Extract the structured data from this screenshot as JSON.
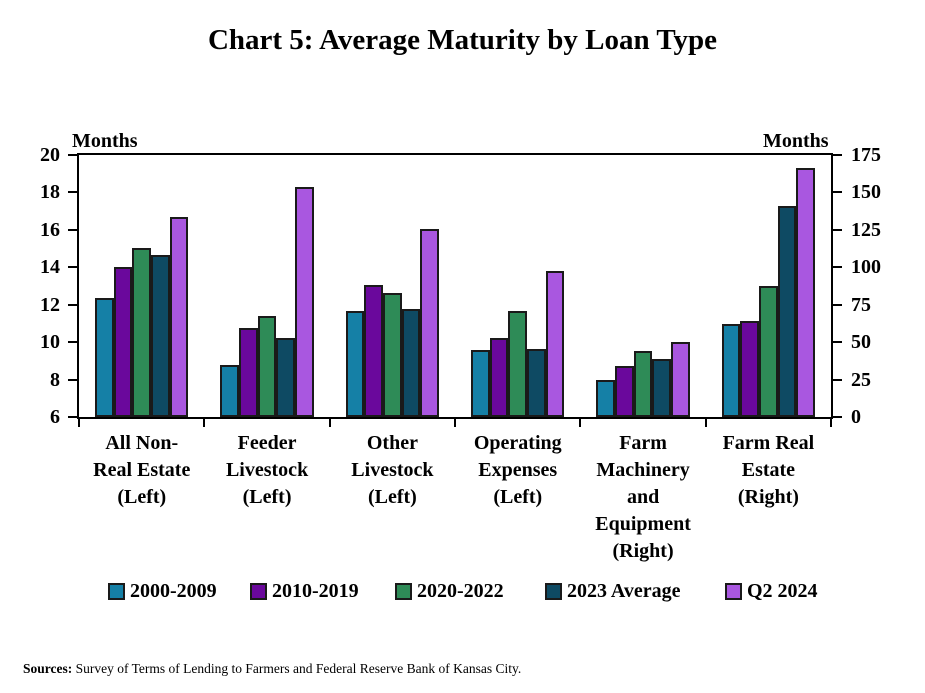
{
  "title": "Chart 5: Average Maturity by Loan Type",
  "axis_unit_left": "Months",
  "axis_unit_right": "Months",
  "sources": {
    "label": "Sources:",
    "text": " Survey of Terms of Lending to Farmers and Federal Reserve Bank of Kansas City."
  },
  "colors": {
    "series_2000_2009": "#1580A6",
    "series_2010_2019": "#6A089C",
    "series_2020_2022": "#2E8B57",
    "series_2023_average": "#0E4A63",
    "series_q2_2024": "#A957E0",
    "bar_border": "#1a1a1a",
    "axis": "#000000"
  },
  "chart_data": {
    "type": "bar",
    "title": "Chart 5: Average Maturity by Loan Type",
    "grid": false,
    "legend_position": "bottom",
    "left_axis": {
      "label": "Months",
      "min": 6,
      "max": 20,
      "ticks": [
        20,
        18,
        16,
        14,
        12,
        10,
        8,
        6
      ]
    },
    "right_axis": {
      "label": "Months",
      "min": 0,
      "max": 175,
      "ticks": [
        175,
        150,
        125,
        100,
        75,
        50,
        25,
        0
      ]
    },
    "categories": [
      {
        "label": "All Non-\nReal Estate\n(Left)",
        "axis": "left"
      },
      {
        "label": "Feeder\nLivestock\n(Left)",
        "axis": "left"
      },
      {
        "label": "Other\nLivestock\n(Left)",
        "axis": "left"
      },
      {
        "label": "Operating\nExpenses\n(Left)",
        "axis": "left"
      },
      {
        "label": "Farm\nMachinery\nand\nEquipment\n(Right)",
        "axis": "right"
      },
      {
        "label": "Farm Real\nEstate\n(Right)",
        "axis": "right"
      }
    ],
    "series": [
      {
        "name": "2000-2009",
        "color": "#1580A6",
        "values": [
          12.35,
          8.8,
          11.65,
          9.6,
          24.5,
          62
        ]
      },
      {
        "name": "2010-2019",
        "color": "#6A089C",
        "values": [
          14.0,
          10.75,
          13.05,
          10.2,
          34,
          64
        ]
      },
      {
        "name": "2020-2022",
        "color": "#2E8B57",
        "values": [
          15.05,
          11.4,
          12.65,
          11.65,
          44,
          87.5
        ]
      },
      {
        "name": "2023 Average",
        "color": "#0E4A63",
        "values": [
          14.65,
          10.2,
          11.75,
          9.65,
          39,
          141
        ]
      },
      {
        "name": "Q2 2024",
        "color": "#A957E0",
        "values": [
          16.7,
          18.3,
          16.05,
          13.8,
          50,
          166
        ]
      }
    ]
  }
}
